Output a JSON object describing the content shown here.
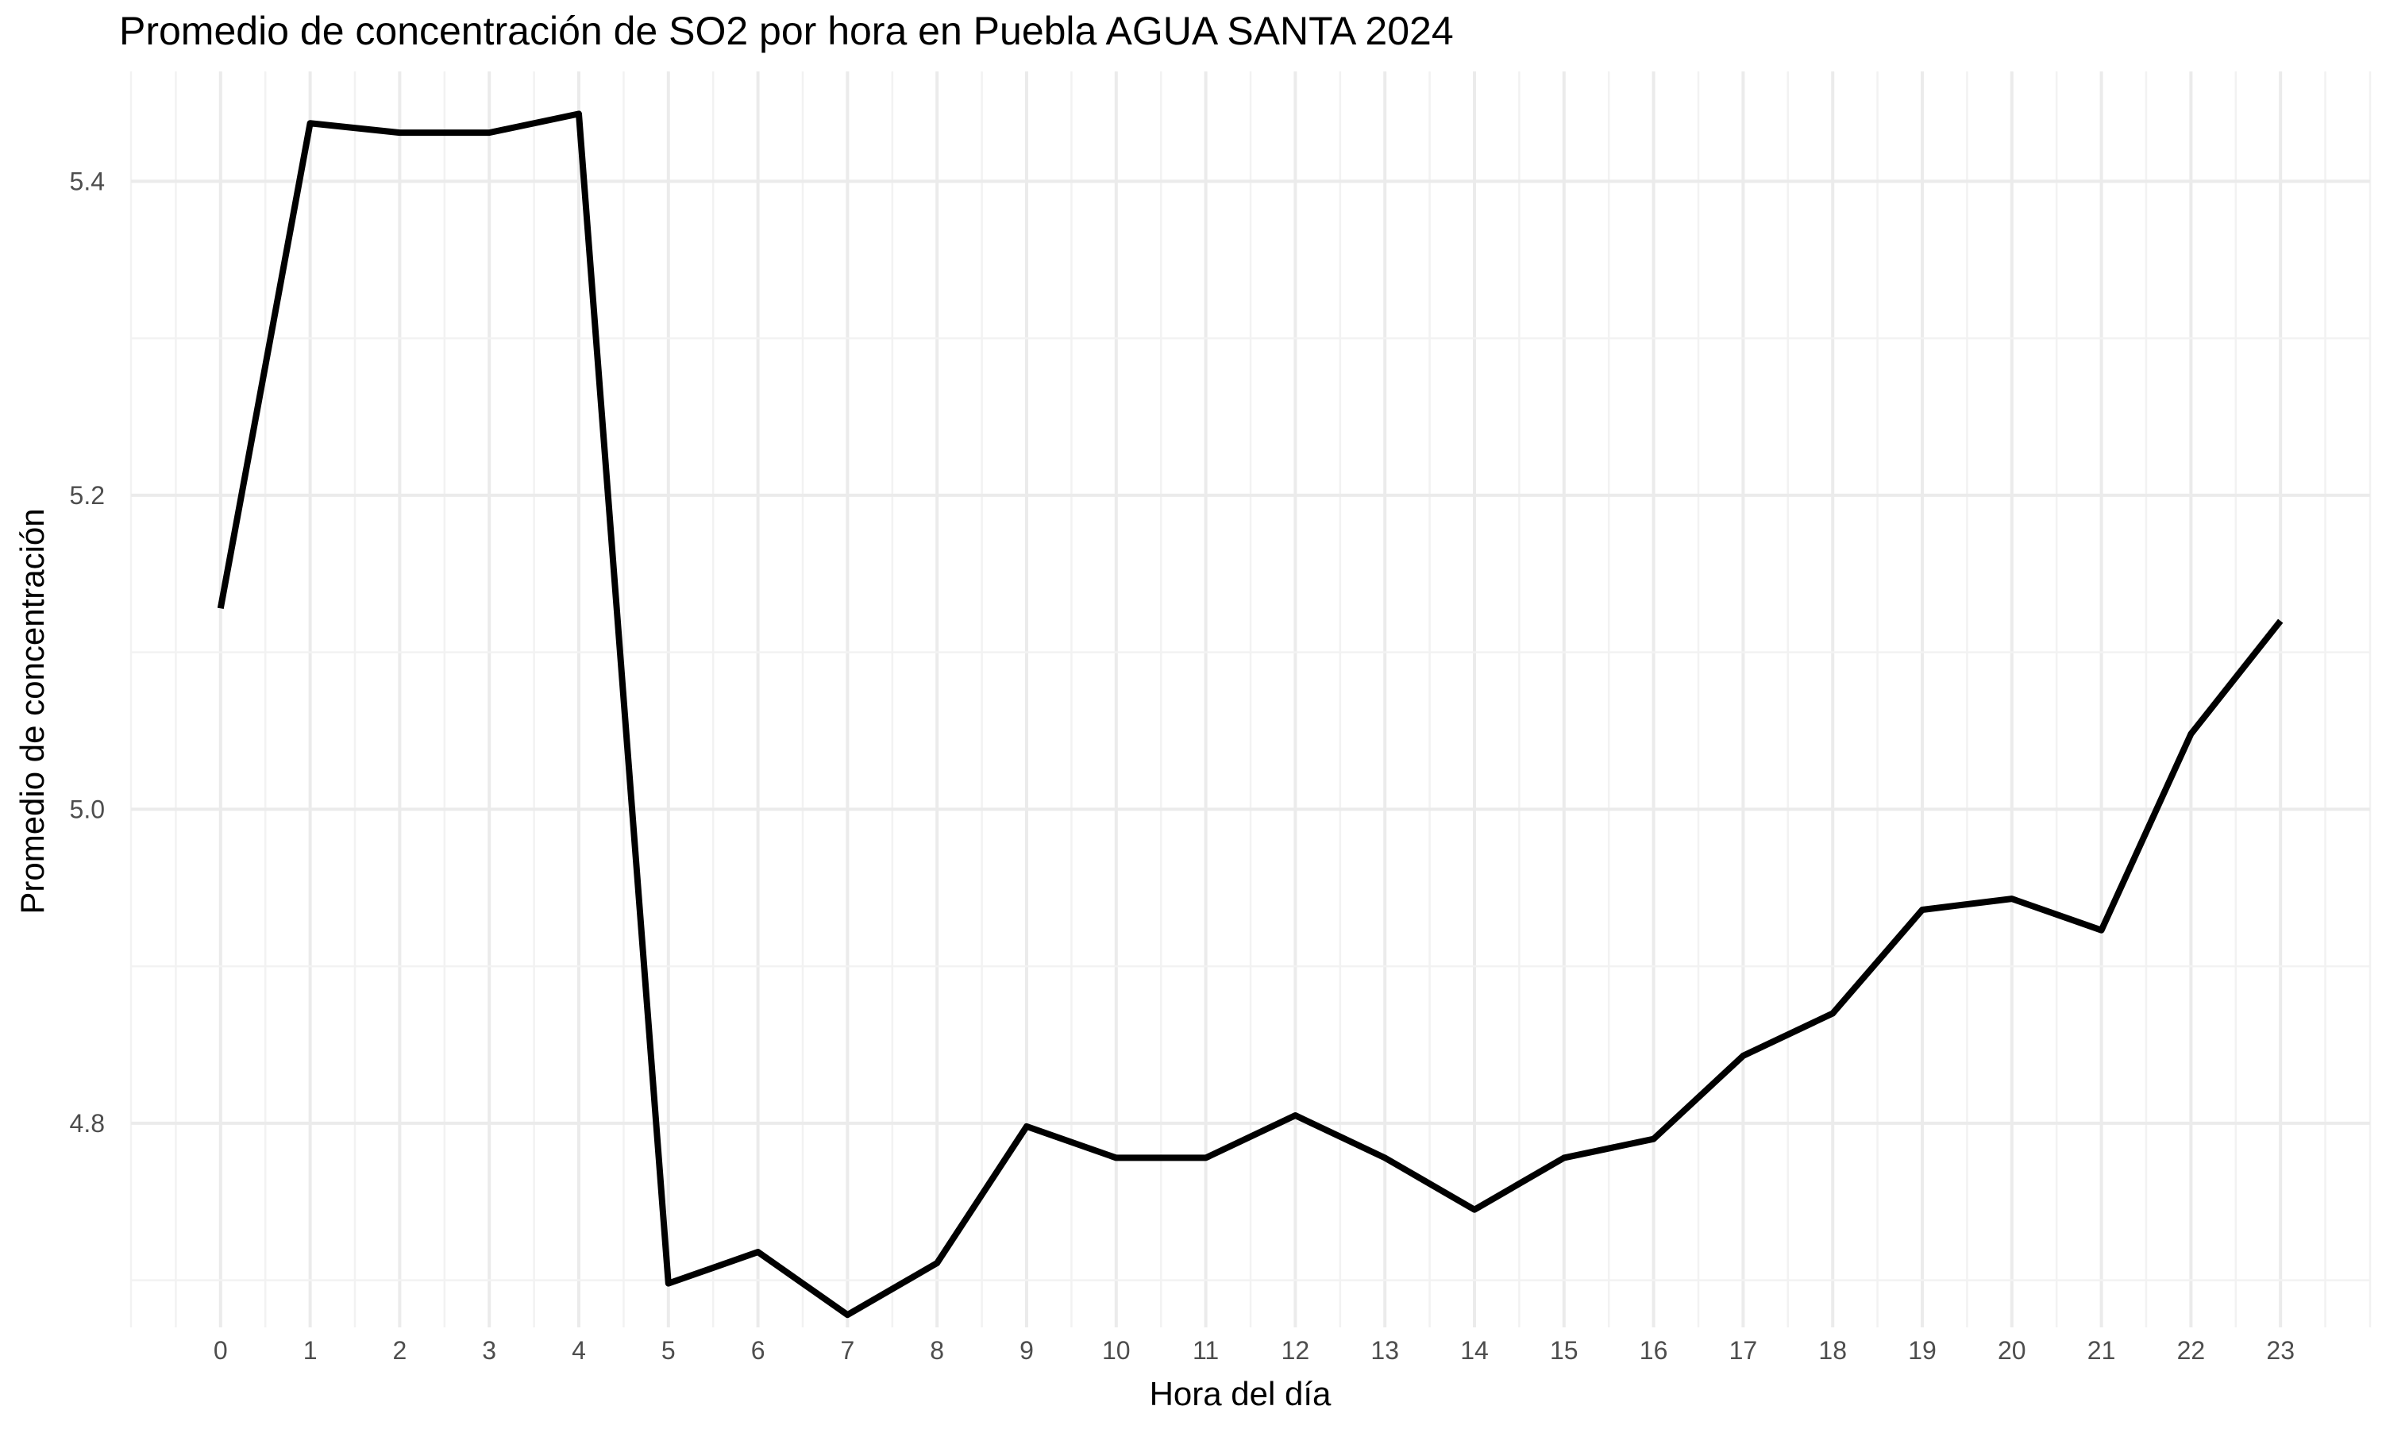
{
  "chart_data": {
    "type": "line",
    "title": "Promedio de concentración de SO2 por hora en Puebla AGUA SANTA 2024",
    "xlabel": "Hora del día",
    "ylabel": "Promedio de concentración",
    "x": [
      0,
      1,
      2,
      3,
      4,
      5,
      6,
      7,
      8,
      9,
      10,
      11,
      12,
      13,
      14,
      15,
      16,
      17,
      18,
      19,
      20,
      21,
      22,
      23
    ],
    "x_tick_labels": [
      "0",
      "1",
      "2",
      "3",
      "4",
      "5",
      "6",
      "7",
      "8",
      "9",
      "10",
      "11",
      "12",
      "13",
      "14",
      "15",
      "16",
      "17",
      "18",
      "19",
      "20",
      "21",
      "22",
      "23"
    ],
    "xlim": [
      -1,
      24
    ],
    "ylim": [
      4.67,
      5.47
    ],
    "y_ticks": [
      4.8,
      5.0,
      5.2,
      5.4
    ],
    "y_tick_labels": [
      "4.8",
      "5.0",
      "5.2",
      "5.4"
    ],
    "series": [
      {
        "values": [
          5.128,
          5.437,
          5.431,
          5.431,
          5.443,
          4.698,
          4.718,
          4.678,
          4.711,
          4.798,
          4.778,
          4.778,
          4.805,
          4.778,
          4.745,
          4.778,
          4.79,
          4.843,
          4.87,
          4.936,
          4.943,
          4.923,
          5.048,
          5.12
        ]
      }
    ],
    "grid": true,
    "legend": "none",
    "line_color": "#000000",
    "grid_color": "#ebebeb",
    "background": "#ffffff"
  }
}
